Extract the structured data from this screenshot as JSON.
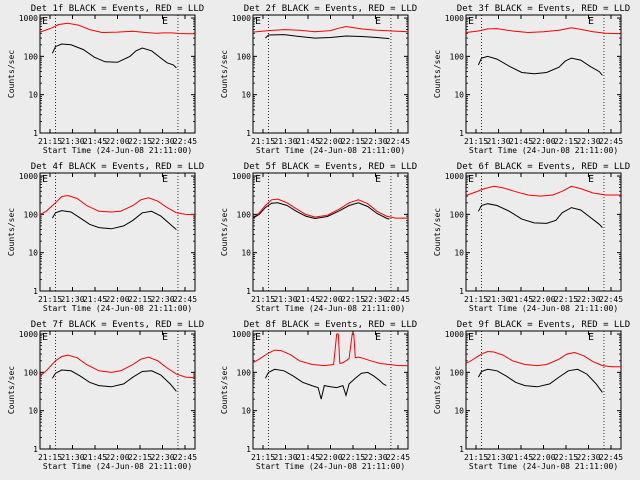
{
  "page_background": "#ececec",
  "colors": {
    "events": "#000000",
    "lld": "#ff0000",
    "axes": "#000000"
  },
  "common": {
    "ylabel": "Counts/sec",
    "xlabel": "Start Time (24-Jun-08 21:11:00)",
    "xtick_labels": [
      "21:15",
      "21:30",
      "21:45",
      "22:00",
      "22:15",
      "22:30",
      "22:45"
    ],
    "ytick_labels": [
      "1",
      "10",
      "100",
      "1000"
    ],
    "marker_label": "E"
  },
  "chart_data": [
    {
      "type": "line",
      "title": "Det 1f BLACK = Events, RED = LLD",
      "ylabel": "Counts/sec",
      "xlabel": "Start Time (24-Jun-08 21:11:00)",
      "x_unit": "minutes since 21:11",
      "xlim": [
        0,
        100
      ],
      "ylim": [
        1,
        1200
      ],
      "yscale": "log",
      "markers_x": [
        10,
        89
      ],
      "series": [
        {
          "name": "LLD",
          "color": "#ff0000",
          "x": [
            0,
            8,
            12,
            18,
            25,
            32,
            40,
            50,
            60,
            68,
            75,
            80,
            85,
            90,
            95,
            100
          ],
          "y": [
            430,
            560,
            680,
            730,
            650,
            500,
            420,
            430,
            450,
            420,
            400,
            410,
            410,
            395,
            390,
            390
          ]
        },
        {
          "name": "Events",
          "color": "#000000",
          "x": [
            8,
            10,
            14,
            20,
            28,
            35,
            42,
            50,
            58,
            62,
            66,
            72,
            78,
            82,
            86,
            88
          ],
          "y": [
            120,
            180,
            210,
            200,
            150,
            95,
            72,
            70,
            100,
            140,
            165,
            140,
            90,
            68,
            60,
            50
          ]
        }
      ]
    },
    {
      "type": "line",
      "title": "Det 2f BLACK = Events, RED = LLD",
      "ylabel": "Counts/sec",
      "xlabel": "Start Time (24-Jun-08 21:11:00)",
      "x_unit": "minutes since 21:11",
      "xlim": [
        0,
        100
      ],
      "ylim": [
        1,
        1200
      ],
      "yscale": "log",
      "markers_x": [
        10,
        89
      ],
      "series": [
        {
          "name": "LLD",
          "color": "#ff0000",
          "x": [
            0,
            10,
            20,
            30,
            40,
            50,
            55,
            60,
            65,
            70,
            75,
            80,
            90,
            100
          ],
          "y": [
            430,
            470,
            500,
            480,
            440,
            470,
            540,
            600,
            560,
            520,
            500,
            480,
            460,
            440
          ]
        },
        {
          "name": "Events",
          "color": "#000000",
          "x": [
            8,
            10,
            20,
            30,
            40,
            50,
            60,
            70,
            80,
            88
          ],
          "y": [
            300,
            360,
            370,
            330,
            300,
            310,
            340,
            330,
            310,
            290
          ]
        }
      ]
    },
    {
      "type": "line",
      "title": "Det 3f BLACK = Events, RED = LLD",
      "ylabel": "Counts/sec",
      "xlabel": "Start Time (24-Jun-08 21:11:00)",
      "x_unit": "minutes since 21:11",
      "xlim": [
        0,
        100
      ],
      "ylim": [
        1,
        1200
      ],
      "yscale": "log",
      "markers_x": [
        10,
        89
      ],
      "series": [
        {
          "name": "LLD",
          "color": "#ff0000",
          "x": [
            0,
            8,
            14,
            20,
            30,
            40,
            50,
            60,
            68,
            75,
            82,
            90,
            100
          ],
          "y": [
            420,
            460,
            520,
            530,
            460,
            420,
            440,
            480,
            560,
            500,
            440,
            400,
            390
          ]
        },
        {
          "name": "Events",
          "color": "#000000",
          "x": [
            8,
            10,
            14,
            20,
            28,
            36,
            44,
            52,
            60,
            64,
            68,
            74,
            80,
            86,
            88
          ],
          "y": [
            60,
            90,
            100,
            85,
            55,
            38,
            35,
            38,
            52,
            75,
            90,
            80,
            55,
            40,
            32
          ]
        }
      ]
    },
    {
      "type": "line",
      "title": "Det 4f BLACK = Events, RED = LLD",
      "ylabel": "Counts/sec",
      "xlabel": "Start Time (24-Jun-08 21:11:00)",
      "x_unit": "minutes since 21:11",
      "xlim": [
        0,
        100
      ],
      "ylim": [
        1,
        1200
      ],
      "yscale": "log",
      "markers_x": [
        10,
        89
      ],
      "series": [
        {
          "name": "LLD",
          "color": "#ff0000",
          "x": [
            0,
            4,
            10,
            14,
            18,
            24,
            30,
            38,
            46,
            52,
            60,
            65,
            70,
            76,
            82,
            88,
            94,
            100
          ],
          "y": [
            100,
            120,
            200,
            290,
            310,
            260,
            170,
            120,
            115,
            120,
            170,
            240,
            270,
            220,
            150,
            110,
            100,
            98
          ]
        },
        {
          "name": "Events",
          "color": "#000000",
          "x": [
            8,
            10,
            14,
            20,
            26,
            32,
            38,
            46,
            54,
            60,
            66,
            72,
            78,
            84,
            88
          ],
          "y": [
            80,
            110,
            125,
            115,
            80,
            55,
            45,
            42,
            50,
            70,
            110,
            120,
            90,
            55,
            40
          ]
        }
      ]
    },
    {
      "type": "line",
      "title": "Det 5f BLACK = Events, RED = LLD",
      "ylabel": "Counts/sec",
      "xlabel": "Start Time (24-Jun-08 21:11:00)",
      "x_unit": "minutes since 21:11",
      "xlim": [
        0,
        100
      ],
      "ylim": [
        1,
        1200
      ],
      "yscale": "log",
      "markers_x": [
        10,
        89
      ],
      "series": [
        {
          "name": "LLD",
          "color": "#ff0000",
          "x": [
            0,
            4,
            8,
            12,
            16,
            22,
            28,
            34,
            40,
            48,
            56,
            62,
            68,
            74,
            80,
            86,
            92,
            100
          ],
          "y": [
            80,
            110,
            170,
            240,
            250,
            200,
            140,
            100,
            85,
            95,
            140,
            200,
            240,
            190,
            120,
            90,
            80,
            80
          ]
        },
        {
          "name": "Events",
          "color": "#000000",
          "x": [
            0,
            4,
            8,
            12,
            16,
            22,
            28,
            34,
            40,
            48,
            56,
            62,
            68,
            74,
            80,
            86,
            88
          ],
          "y": [
            80,
            100,
            150,
            195,
            200,
            170,
            120,
            90,
            78,
            88,
            125,
            170,
            200,
            160,
            105,
            80,
            75
          ]
        }
      ]
    },
    {
      "type": "line",
      "title": "Det 6f BLACK = Events, RED = LLD",
      "ylabel": "Counts/sec",
      "xlabel": "Start Time (24-Jun-08 21:11:00)",
      "x_unit": "minutes since 21:11",
      "xlim": [
        0,
        100
      ],
      "ylim": [
        1,
        1200
      ],
      "yscale": "log",
      "markers_x": [
        10,
        89
      ],
      "series": [
        {
          "name": "LLD",
          "color": "#ff0000",
          "x": [
            0,
            6,
            12,
            18,
            24,
            32,
            40,
            48,
            56,
            62,
            68,
            74,
            82,
            90,
            100
          ],
          "y": [
            310,
            380,
            470,
            540,
            490,
            390,
            320,
            300,
            320,
            400,
            540,
            470,
            360,
            320,
            320
          ]
        },
        {
          "name": "Events",
          "color": "#000000",
          "x": [
            8,
            10,
            14,
            20,
            28,
            36,
            44,
            52,
            58,
            62,
            68,
            74,
            80,
            86,
            88
          ],
          "y": [
            120,
            170,
            190,
            170,
            120,
            75,
            60,
            58,
            70,
            110,
            150,
            130,
            85,
            55,
            45
          ]
        }
      ]
    },
    {
      "type": "line",
      "title": "Det 7f BLACK = Events, RED = LLD",
      "ylabel": "Counts/sec",
      "xlabel": "Start Time (24-Jun-08 21:11:00)",
      "x_unit": "minutes since 21:11",
      "xlim": [
        0,
        100
      ],
      "ylim": [
        1,
        1200
      ],
      "yscale": "log",
      "markers_x": [
        10,
        89
      ],
      "series": [
        {
          "name": "LLD",
          "color": "#ff0000",
          "x": [
            0,
            4,
            10,
            14,
            18,
            24,
            30,
            38,
            46,
            52,
            60,
            65,
            70,
            76,
            82,
            88,
            94,
            100
          ],
          "y": [
            80,
            110,
            200,
            260,
            280,
            240,
            160,
            110,
            100,
            110,
            160,
            220,
            250,
            200,
            130,
            90,
            75,
            72
          ]
        },
        {
          "name": "Events",
          "color": "#000000",
          "x": [
            8,
            10,
            14,
            20,
            26,
            32,
            38,
            46,
            54,
            60,
            66,
            72,
            78,
            84,
            88
          ],
          "y": [
            70,
            95,
            115,
            110,
            80,
            55,
            45,
            42,
            50,
            75,
            105,
            110,
            85,
            50,
            32
          ]
        }
      ]
    },
    {
      "type": "line",
      "title": "Det 8f BLACK = Events, RED = LLD",
      "ylabel": "Counts/sec",
      "xlabel": "Start Time (24-Jun-08 21:11:00)",
      "x_unit": "minutes since 21:11",
      "xlim": [
        0,
        100
      ],
      "ylim": [
        1,
        1200
      ],
      "yscale": "log",
      "markers_x": [
        10,
        89
      ],
      "series": [
        {
          "name": "LLD",
          "color": "#ff0000",
          "x": [
            0,
            4,
            10,
            14,
            18,
            24,
            30,
            38,
            46,
            52,
            54,
            55,
            56,
            58,
            60,
            62,
            64,
            65,
            66,
            68,
            70,
            76,
            82,
            88,
            94,
            100
          ],
          "y": [
            180,
            220,
            320,
            380,
            370,
            290,
            200,
            160,
            150,
            160,
            1000,
            1000,
            170,
            180,
            200,
            230,
            1000,
            1000,
            240,
            250,
            240,
            200,
            170,
            160,
            150,
            150
          ]
        },
        {
          "name": "Events",
          "color": "#000000",
          "x": [
            8,
            10,
            14,
            20,
            26,
            32,
            38,
            42,
            44,
            46,
            50,
            54,
            58,
            60,
            62,
            66,
            70,
            74,
            78,
            82,
            84,
            86
          ],
          "y": [
            70,
            100,
            120,
            110,
            80,
            55,
            45,
            40,
            20,
            45,
            42,
            40,
            45,
            25,
            50,
            70,
            95,
            100,
            80,
            60,
            50,
            45
          ]
        }
      ]
    },
    {
      "type": "line",
      "title": "Det 9f BLACK = Events, RED = LLD",
      "ylabel": "Counts/sec",
      "xlabel": "Start Time (24-Jun-08 21:11:00)",
      "x_unit": "minutes since 21:11",
      "xlim": [
        0,
        100
      ],
      "ylim": [
        1,
        1200
      ],
      "yscale": "log",
      "markers_x": [
        10,
        89
      ],
      "series": [
        {
          "name": "LLD",
          "color": "#ff0000",
          "x": [
            0,
            4,
            10,
            14,
            18,
            24,
            30,
            38,
            46,
            52,
            60,
            65,
            70,
            76,
            82,
            88,
            94,
            100
          ],
          "y": [
            170,
            210,
            300,
            350,
            340,
            280,
            200,
            160,
            150,
            160,
            220,
            300,
            330,
            270,
            190,
            150,
            140,
            140
          ]
        },
        {
          "name": "Events",
          "color": "#000000",
          "x": [
            8,
            10,
            14,
            20,
            26,
            32,
            38,
            46,
            54,
            60,
            66,
            72,
            78,
            84,
            88
          ],
          "y": [
            75,
            105,
            120,
            110,
            80,
            55,
            45,
            42,
            50,
            75,
            110,
            120,
            90,
            50,
            30
          ]
        }
      ]
    }
  ]
}
